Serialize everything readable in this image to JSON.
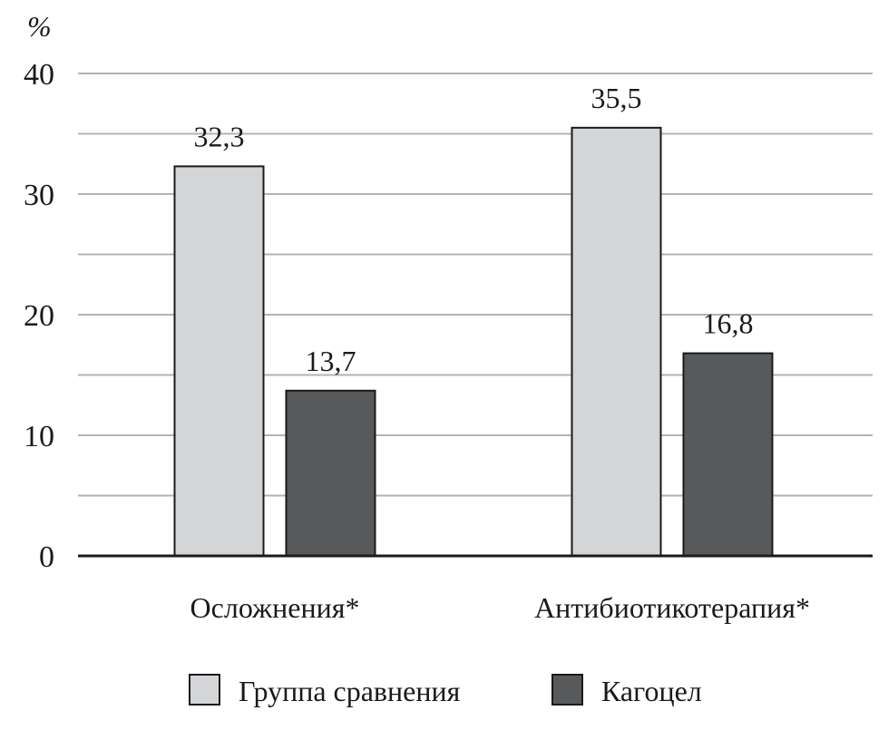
{
  "chart_data": {
    "type": "bar",
    "ylabel": "%",
    "ylim": [
      0,
      40
    ],
    "yticks": [
      "0",
      "10",
      "20",
      "30",
      "40"
    ],
    "grid": true,
    "legend_position": "bottom",
    "categories": [
      "Осложнения*",
      "Антибиотикотерапия*"
    ],
    "series": [
      {
        "name": "Группа сравнения",
        "values": [
          32.3,
          35.5
        ],
        "labels": [
          "32,3",
          "35,5"
        ],
        "color": "#d4d5d7"
      },
      {
        "name": "Кагоцел",
        "values": [
          13.7,
          16.8
        ],
        "labels": [
          "13,7",
          "16,8"
        ],
        "color": "#58595b"
      }
    ]
  }
}
